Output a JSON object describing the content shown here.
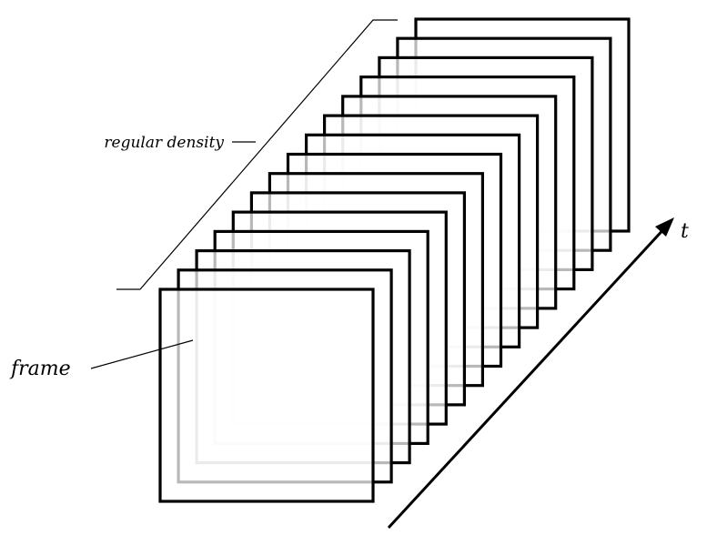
{
  "labels": {
    "density": "regular density",
    "frame": "frame",
    "time_axis": "t"
  },
  "frames": {
    "count": 15
  },
  "colors": {
    "frame_stroke": "#000000",
    "background": "#ffffff",
    "annotation_line": "#000000"
  }
}
